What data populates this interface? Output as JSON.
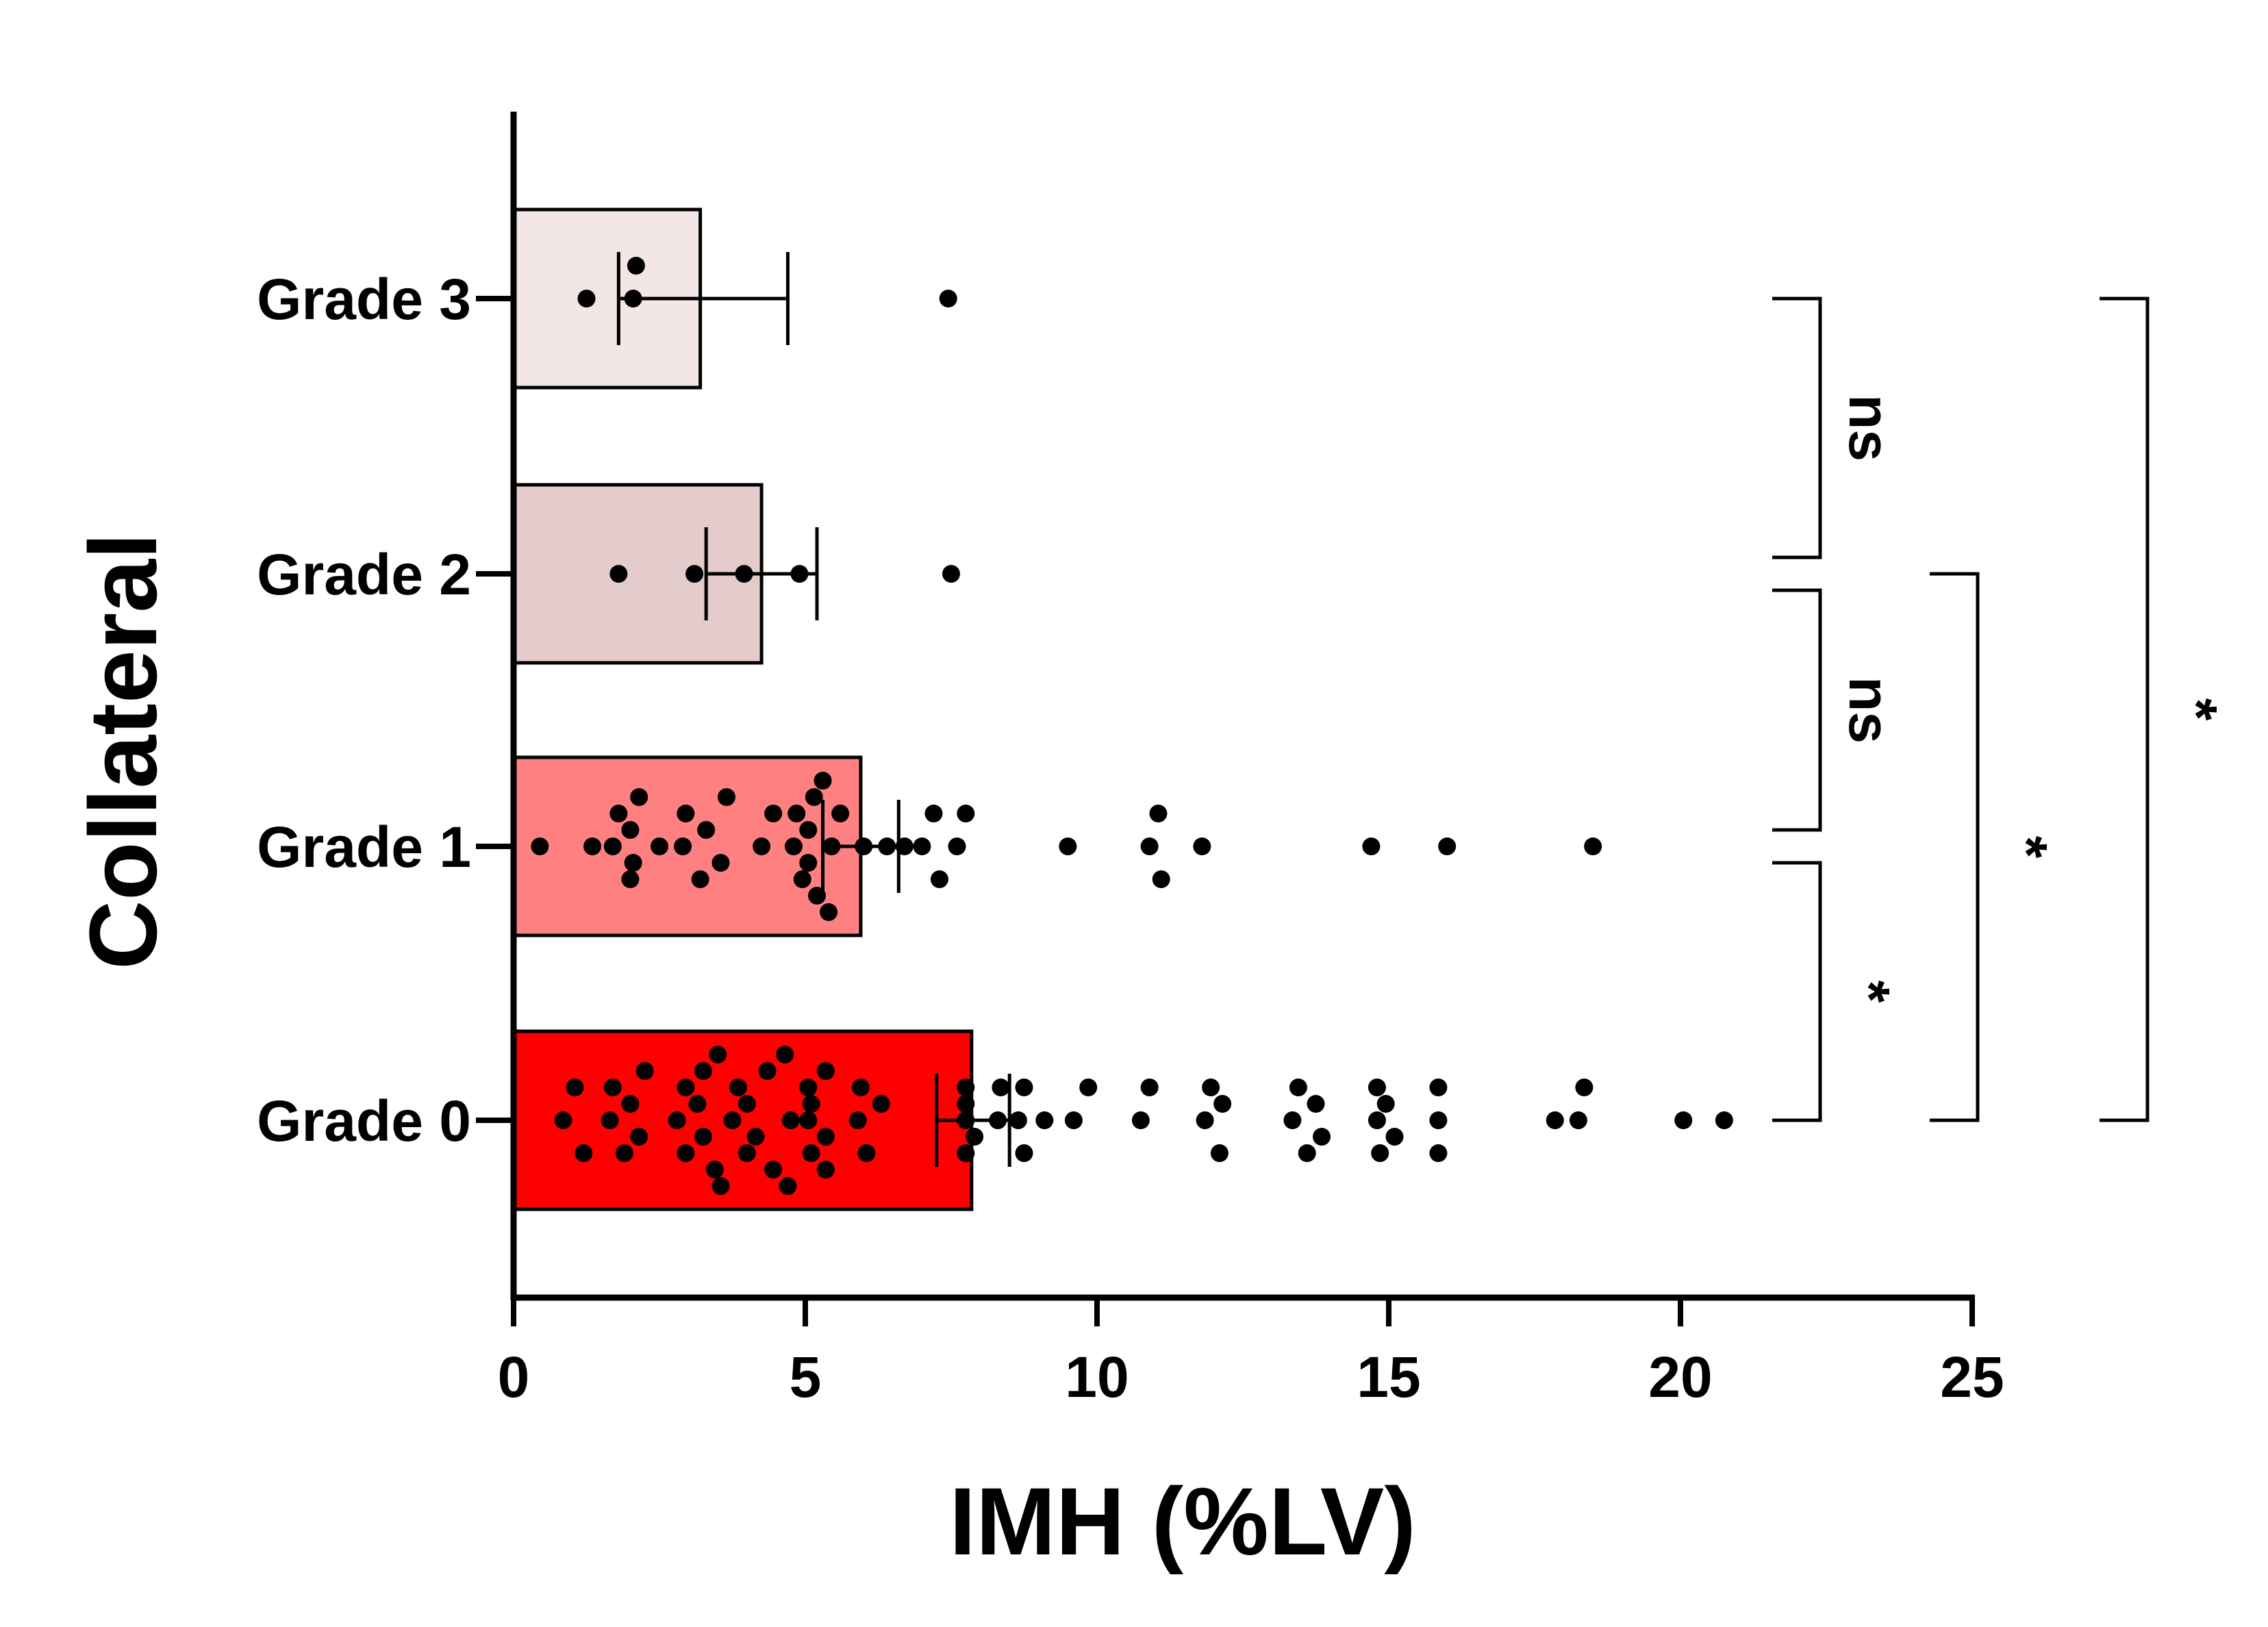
{
  "chart_data": {
    "type": "bar",
    "orientation": "horizontal",
    "title": "",
    "xlabel": "IMH (%LV)",
    "ylabel": "Collateral",
    "xlim": [
      0,
      25
    ],
    "xticks": [
      "0",
      "5",
      "10",
      "15",
      "20",
      "25"
    ],
    "grid": false,
    "legend": "none",
    "categories": [
      "Grade 0",
      "Grade 1",
      "Grade 2",
      "Grade 3"
    ],
    "colors": [
      "#ff0000",
      "#ff8080",
      "#e4cccc",
      "#f3e6e6"
    ],
    "means": [
      7.85,
      5.95,
      4.25,
      3.2
    ],
    "error_low": [
      7.25,
      5.3,
      3.3,
      1.8
    ],
    "error_high": [
      8.5,
      6.6,
      5.2,
      4.7
    ],
    "points": [
      [
        0.85,
        1.05,
        1.2,
        1.65,
        1.7,
        1.9,
        2.0,
        2.15,
        2.25,
        2.8,
        2.95,
        2.95,
        3.15,
        3.25,
        3.25,
        3.45,
        3.5,
        3.55,
        3.75,
        3.85,
        4.0,
        4.0,
        4.15,
        4.35,
        4.45,
        4.65,
        4.7,
        4.75,
        5.05,
        5.05,
        5.1,
        5.1,
        5.35,
        5.35,
        5.35,
        5.9,
        5.95,
        6.05,
        6.3,
        7.75,
        7.75,
        7.75,
        7.75,
        7.9,
        8.3,
        8.35,
        8.65,
        8.75,
        8.75,
        9.1,
        9.6,
        9.85,
        10.75,
        10.9,
        11.85,
        11.95,
        12.1,
        12.15,
        13.35,
        13.45,
        13.6,
        13.75,
        13.85,
        14.8,
        14.8,
        14.85,
        14.95,
        15.1,
        15.85,
        15.85,
        15.85,
        17.85,
        18.25,
        18.35,
        20.05,
        20.75
      ],
      [
        0.45,
        1.35,
        1.7,
        1.8,
        2.0,
        2.0,
        2.05,
        2.15,
        2.5,
        2.9,
        2.95,
        3.2,
        3.3,
        3.55,
        3.65,
        4.25,
        4.45,
        4.8,
        4.85,
        4.95,
        5.05,
        5.05,
        5.15,
        5.2,
        5.3,
        5.4,
        5.45,
        5.6,
        6.0,
        6.4,
        6.7,
        7.0,
        7.2,
        7.3,
        7.6,
        7.75,
        9.5,
        10.9,
        11.05,
        11.1,
        11.8,
        14.7,
        16.0,
        18.5
      ],
      [
        1.8,
        3.1,
        3.95,
        4.9,
        7.5
      ],
      [
        1.25,
        2.05,
        2.1,
        7.45
      ]
    ],
    "comparisons": [
      {
        "from": "Grade 3",
        "to": "Grade 2",
        "label": "ns"
      },
      {
        "from": "Grade 2",
        "to": "Grade 1",
        "label": "ns"
      },
      {
        "from": "Grade 1",
        "to": "Grade 0",
        "label": "*"
      },
      {
        "from": "Grade 2",
        "to": "Grade 0",
        "label": "*"
      },
      {
        "from": "Grade 3",
        "to": "Grade 0",
        "label": "*"
      }
    ]
  }
}
